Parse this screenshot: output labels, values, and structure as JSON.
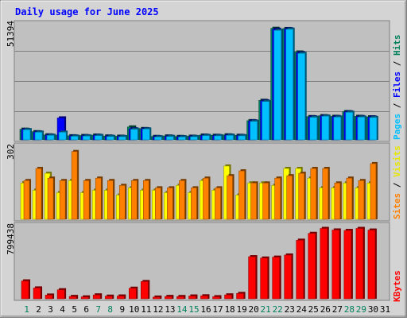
{
  "title": "Daily usage for June 2025",
  "colors": {
    "hits": "#00805c",
    "files": "#0000ff",
    "pages": "#00c0ff",
    "visits": "#ffff00",
    "sites": "#ff8000",
    "kbytes": "#ff0000",
    "weekend_day": "#00805c",
    "weekday": "#000000",
    "title": "#0000ff",
    "panel_bg": "#c0c0c0",
    "frame_bg": "#d4d4d4"
  },
  "chart_data": [
    {
      "type": "bar",
      "title": "Daily usage for June 2025",
      "ymax_label": "51394",
      "ylim": [
        0,
        51394
      ],
      "categories": [
        "1",
        "2",
        "3",
        "4",
        "5",
        "6",
        "7",
        "8",
        "9",
        "10",
        "11",
        "12",
        "13",
        "14",
        "15",
        "16",
        "17",
        "18",
        "19",
        "20",
        "21",
        "22",
        "23",
        "24",
        "25",
        "26",
        "27",
        "28",
        "29",
        "30",
        "31"
      ],
      "weekend_days": [
        "1",
        "7",
        "8",
        "14",
        "15",
        "21",
        "22",
        "28",
        "29"
      ],
      "legend": [
        {
          "text": "Hits",
          "color": "#00805c"
        },
        {
          "text": "Files",
          "color": "#0000ff"
        },
        {
          "text": "Pages",
          "color": "#00c0ff"
        }
      ],
      "series": [
        {
          "name": "Hits",
          "values": [
            4700,
            3600,
            2200,
            2100,
            1800,
            1900,
            2100,
            1700,
            1600,
            5700,
            5000,
            1500,
            1700,
            1500,
            1600,
            2100,
            2000,
            2200,
            2000,
            8500,
            17500,
            49400,
            49300,
            38900,
            10300,
            10700,
            10400,
            12500,
            10400,
            10200,
            null
          ]
        },
        {
          "name": "Files",
          "values": [
            4600,
            3500,
            2100,
            9700,
            1700,
            1800,
            2000,
            1600,
            1500,
            4900,
            4900,
            1400,
            1600,
            1400,
            1500,
            2000,
            1900,
            2100,
            1900,
            8400,
            17300,
            49000,
            49200,
            38600,
            10200,
            10600,
            10300,
            12400,
            10300,
            10100,
            null
          ]
        },
        {
          "name": "Pages",
          "values": [
            4500,
            3400,
            2000,
            3400,
            1600,
            1700,
            1900,
            1500,
            1400,
            4700,
            4800,
            1300,
            1500,
            1300,
            1400,
            1900,
            1800,
            2000,
            1800,
            8200,
            17000,
            48500,
            49000,
            38300,
            10000,
            10500,
            10100,
            12200,
            10100,
            9900,
            null
          ]
        }
      ]
    },
    {
      "type": "bar",
      "ymax_label": "302",
      "ylim": [
        0,
        302
      ],
      "categories": [
        "1",
        "2",
        "3",
        "4",
        "5",
        "6",
        "7",
        "8",
        "9",
        "10",
        "11",
        "12",
        "13",
        "14",
        "15",
        "16",
        "17",
        "18",
        "19",
        "20",
        "21",
        "22",
        "23",
        "24",
        "25",
        "26",
        "27",
        "28",
        "29",
        "30",
        "31"
      ],
      "legend": [
        {
          "text": "Visits",
          "color": "#ffff00"
        },
        {
          "text": "Sites",
          "color": "#ff8000"
        }
      ],
      "series": [
        {
          "name": "Visits",
          "values": [
            150,
            120,
            190,
            110,
            160,
            110,
            120,
            120,
            100,
            130,
            120,
            120,
            110,
            140,
            110,
            160,
            120,
            220,
            100,
            150,
            150,
            140,
            210,
            210,
            170,
            130,
            130,
            150,
            130,
            150,
            null
          ]
        },
        {
          "name": "Sites",
          "values": [
            160,
            210,
            170,
            160,
            280,
            160,
            170,
            160,
            140,
            160,
            160,
            130,
            130,
            160,
            130,
            170,
            130,
            180,
            200,
            150,
            150,
            170,
            180,
            190,
            210,
            210,
            150,
            170,
            160,
            230,
            null
          ]
        }
      ]
    },
    {
      "type": "bar",
      "ymax_label": "799438",
      "ylim": [
        0,
        799438
      ],
      "categories": [
        "1",
        "2",
        "3",
        "4",
        "5",
        "6",
        "7",
        "8",
        "9",
        "10",
        "11",
        "12",
        "13",
        "14",
        "15",
        "16",
        "17",
        "18",
        "19",
        "20",
        "21",
        "22",
        "23",
        "24",
        "25",
        "26",
        "27",
        "28",
        "29",
        "30",
        "31"
      ],
      "legend": [
        {
          "text": "KBytes",
          "color": "#ff0000"
        }
      ],
      "series": [
        {
          "name": "KBytes",
          "values": [
            195000,
            118000,
            40000,
            98000,
            25000,
            20000,
            42000,
            28000,
            30000,
            115000,
            188000,
            18000,
            25000,
            24000,
            30000,
            32000,
            22000,
            42000,
            58000,
            460000,
            445000,
            455000,
            478000,
            640000,
            715000,
            769000,
            752000,
            747000,
            769000,
            751000,
            null
          ]
        }
      ]
    }
  ]
}
